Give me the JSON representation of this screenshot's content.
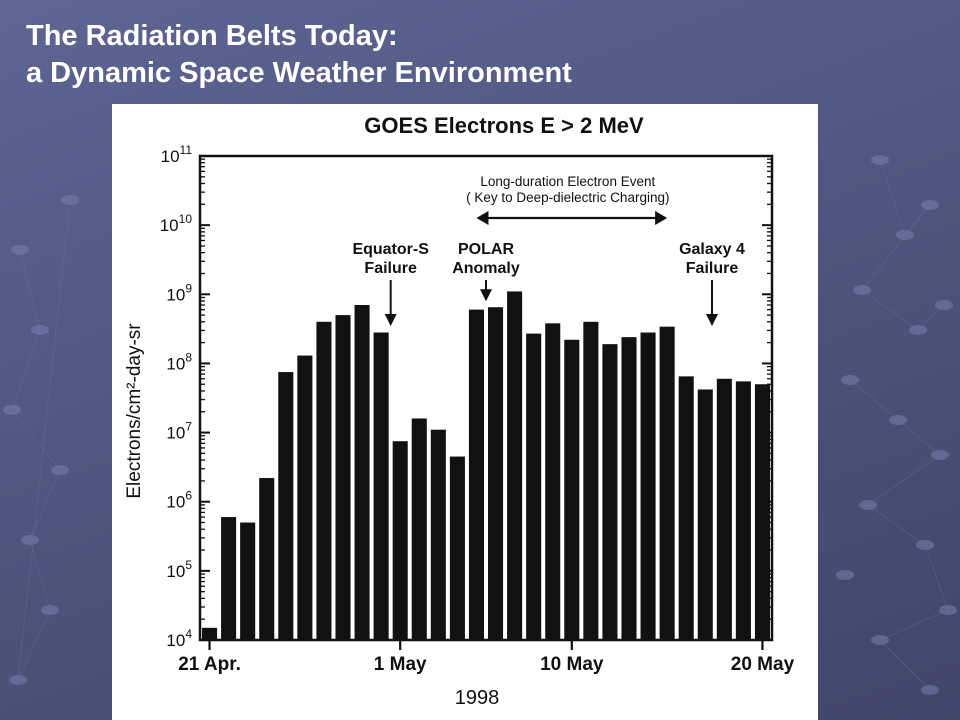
{
  "slide": {
    "title_line1": "The Radiation Belts Today:",
    "title_line2": "a Dynamic Space Weather Environment"
  },
  "colors": {
    "bar": "#111111",
    "background": "#555b88",
    "text": "#ffffff"
  },
  "chart_data": {
    "type": "bar",
    "title": "GOES Electrons E > 2 MeV",
    "ylabel": "Electrons/cm²-day-sr",
    "xlabel": "1998",
    "y_scale": "log",
    "ylim": [
      10000,
      100000000000
    ],
    "y_ticks": [
      {
        "value": 10000,
        "base": "10",
        "exp": "4"
      },
      {
        "value": 100000,
        "base": "10",
        "exp": "5"
      },
      {
        "value": 1000000,
        "base": "10",
        "exp": "6"
      },
      {
        "value": 10000000,
        "base": "10",
        "exp": "7"
      },
      {
        "value": 100000000,
        "base": "10",
        "exp": "8"
      },
      {
        "value": 1000000000,
        "base": "10",
        "exp": "9"
      },
      {
        "value": 10000000000,
        "base": "10",
        "exp": "10"
      },
      {
        "value": 100000000000,
        "base": "10",
        "exp": "11"
      }
    ],
    "x_start": "21 Apr. 1998",
    "x_ticks": [
      {
        "day": 0,
        "label": "21 Apr."
      },
      {
        "day": 10,
        "label": "1 May"
      },
      {
        "day": 19,
        "label": "10 May"
      },
      {
        "day": 29,
        "label": "20 May"
      }
    ],
    "values": [
      15000,
      600000,
      500000,
      2200000,
      75000000,
      130000000,
      400000000,
      500000000,
      700000000,
      280000000,
      7500000,
      16000000,
      11000000,
      4500000,
      600000000,
      650000000,
      1100000000,
      270000000,
      380000000,
      220000000,
      400000000,
      190000000,
      240000000,
      280000000,
      340000000,
      65000000,
      42000000,
      60000000,
      55000000,
      50000000
    ],
    "annotations": [
      {
        "label_lines": [
          "Equator-S",
          "Failure"
        ],
        "day": 10
      },
      {
        "label_lines": [
          "POLAR",
          "Anomaly"
        ],
        "day": 15
      },
      {
        "label_lines": [
          "Galaxy 4",
          "Failure"
        ],
        "day": 27
      },
      {
        "label_lines": [
          "Long-duration Electron Event",
          "( Key to Deep-dielectric Charging)"
        ],
        "span": [
          14,
          24
        ]
      }
    ],
    "grid": false,
    "legend": "none"
  }
}
